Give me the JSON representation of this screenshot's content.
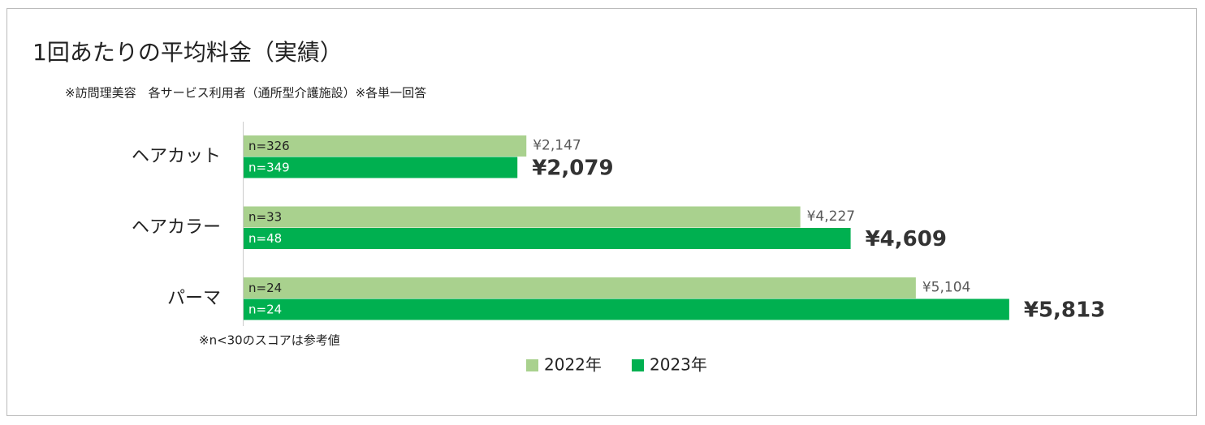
{
  "chart_data": {
    "type": "bar",
    "orientation": "horizontal",
    "title": "1回あたりの平均料金（実績）",
    "subtitle": "※訪問理美容　各サービス利用者（通所型介護施設）※各単一回答",
    "note": "※n<30のスコアは参考値",
    "categories": [
      "ヘアカット",
      "ヘアカラー",
      "パーマ"
    ],
    "series": [
      {
        "name": "2022年",
        "color": "#a9d18e",
        "values": [
          2147,
          4227,
          5104
        ],
        "value_labels": [
          "¥2,147",
          "¥4,227",
          "¥5,104"
        ],
        "bar_labels": [
          "n=326",
          "n=33",
          "n=24"
        ]
      },
      {
        "name": "2023年",
        "color": "#00b050",
        "values": [
          2079,
          4609,
          5813
        ],
        "value_labels": [
          "¥2,079",
          "¥4,609",
          "¥5,813"
        ],
        "bar_labels": [
          "n=349",
          "n=48",
          "n=24"
        ]
      }
    ]
  }
}
